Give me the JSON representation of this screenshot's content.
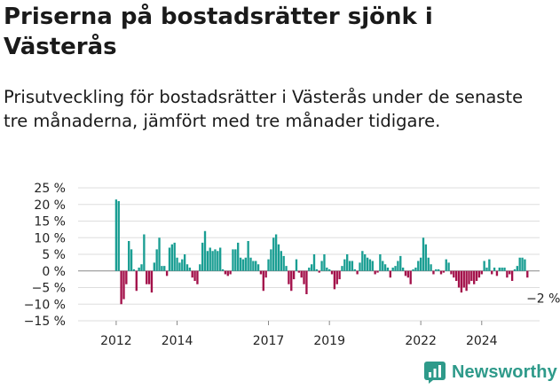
{
  "header": {
    "title": "Priserna på bostadsrätter sjönk i Västerås",
    "subtitle": "Prisutveckling för bostadsrätter i Västerås under de senaste tre månaderna, jämfört med tre månader tidigare."
  },
  "brand": {
    "name": "Newsworthy",
    "color": "#2e9a8a"
  },
  "colors": {
    "positive": "#1a9e93",
    "negative": "#a3114a",
    "grid": "#dddddd"
  },
  "chart_data": {
    "type": "bar",
    "title": "Priserna på bostadsrätter sjönk i Västerås",
    "subtitle": "Prisutveckling för bostadsrätter i Västerås under de senaste tre månaderna, jämfört med tre månader tidigare.",
    "xlabel": "",
    "ylabel": "",
    "unit": "%",
    "x_start": 2012.0,
    "x_step_months": 1,
    "xlim": [
      2010.75,
      2025.9
    ],
    "ylim": [
      -15,
      25
    ],
    "y_ticks": [
      25,
      20,
      15,
      10,
      5,
      0,
      -5,
      -10,
      -15
    ],
    "y_tick_labels": [
      "25 %",
      "20 %",
      "15 %",
      "10 %",
      "5 %",
      "0 %",
      "−5 %",
      "−10 %",
      "−15 %"
    ],
    "x_ticks": [
      2012,
      2014,
      2017,
      2019,
      2022,
      2024
    ],
    "x_tick_labels": [
      "2012",
      "2014",
      "2017",
      "2019",
      "2022",
      "2024"
    ],
    "grid": true,
    "annotation": {
      "text": "−2 %",
      "value": -2
    },
    "values": [
      21.5,
      21,
      -10,
      -8.5,
      -4,
      9,
      6.5,
      0.5,
      -6,
      1,
      2,
      11,
      -4,
      -4,
      -6.5,
      2.5,
      6.5,
      10,
      1.5,
      1.5,
      -1.5,
      7,
      8,
      8.5,
      4,
      2.5,
      3.5,
      5,
      2,
      1,
      -2,
      -3,
      -4,
      2,
      8.5,
      12,
      6,
      7,
      6,
      6.5,
      6,
      7,
      0.5,
      -1,
      -1.5,
      -1,
      6.5,
      6.5,
      8.5,
      4,
      3.5,
      4,
      9,
      4,
      3,
      3,
      2,
      -1,
      -6,
      -2,
      3.5,
      6.5,
      10,
      11,
      8,
      6,
      4.5,
      1.5,
      -4,
      -6,
      -2.5,
      3.5,
      -0.5,
      -2,
      -4,
      -7,
      1,
      2,
      5,
      0.5,
      -0.5,
      3,
      5,
      1,
      0.5,
      -1,
      -5.5,
      -4,
      -2.5,
      1.5,
      3.5,
      5,
      3,
      3,
      0.5,
      -1,
      2.5,
      6,
      5,
      4,
      3.5,
      3,
      -1,
      -0.5,
      5,
      3,
      2,
      1,
      -2,
      1,
      1.5,
      3,
      4.5,
      1,
      -1.5,
      -2,
      -4,
      0.5,
      1,
      3,
      4,
      10,
      8,
      4,
      2,
      -1,
      0.5,
      0.5,
      -1,
      -0.5,
      3.5,
      2.5,
      -1,
      -2,
      -3,
      -5,
      -6.5,
      -5,
      -6,
      -4,
      -3,
      -4,
      -3,
      -2,
      -1,
      3,
      1,
      3.5,
      -1,
      1,
      -1.5,
      1,
      1,
      1,
      -2,
      -1,
      -3,
      0.5,
      1.5,
      4,
      4,
      3.5,
      -2
    ]
  }
}
